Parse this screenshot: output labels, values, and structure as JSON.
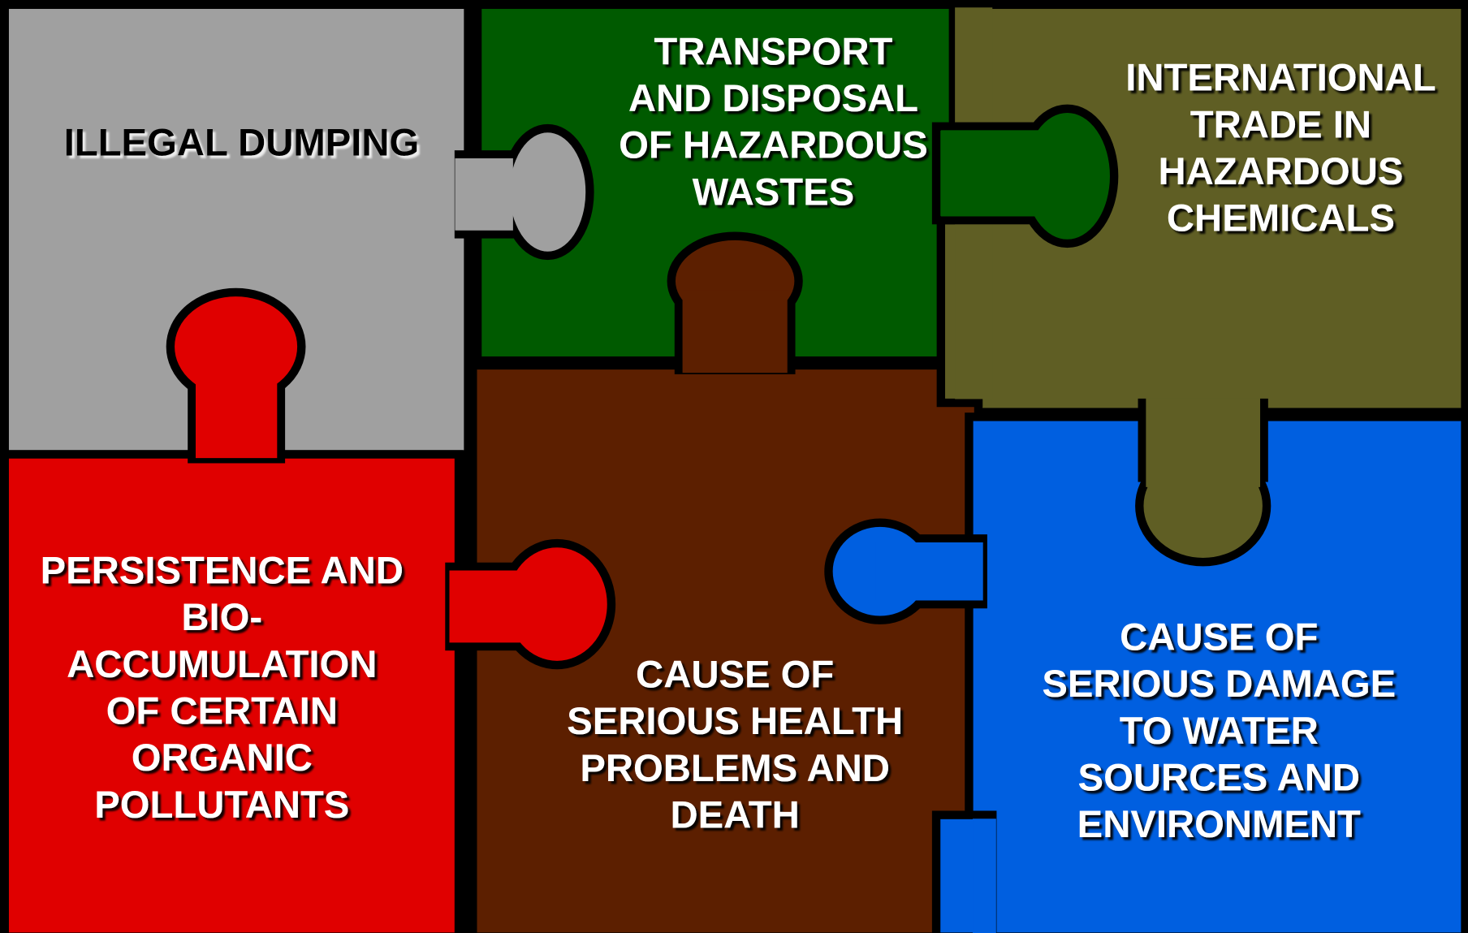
{
  "pieces": [
    {
      "lines": [
        "ILLEGAL DUMPING"
      ]
    },
    {
      "lines": [
        "TRANSPORT",
        "AND DISPOSAL",
        "OF HAZARDOUS",
        "WASTES"
      ]
    },
    {
      "lines": [
        "INTERNATIONAL",
        "TRADE IN",
        "HAZARDOUS",
        "CHEMICALS"
      ]
    },
    {
      "lines": [
        "PERSISTENCE AND",
        "BIO-",
        "ACCUMULATION",
        "OF CERTAIN",
        "ORGANIC",
        "POLLUTANTS"
      ]
    },
    {
      "lines": [
        "CAUSE OF",
        "SERIOUS HEALTH",
        "PROBLEMS AND",
        "DEATH"
      ]
    },
    {
      "lines": [
        "CAUSE OF",
        "SERIOUS DAMAGE",
        "TO WATER",
        "SOURCES AND",
        "ENVIRONMENT"
      ]
    }
  ]
}
